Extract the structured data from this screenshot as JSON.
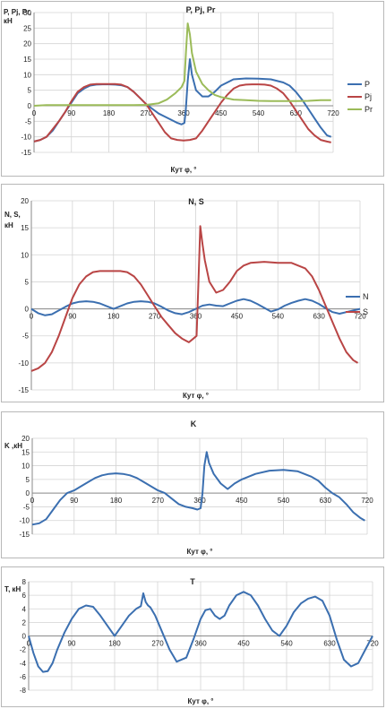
{
  "colors": {
    "blue": "#3b6fb0",
    "red": "#b94545",
    "green": "#9bbb59",
    "grid": "#d4d4d4",
    "axis": "#8a8a8a"
  },
  "chart_data": [
    {
      "type": "line",
      "title": "P, Pj, Pr",
      "ylabel": "P, Pj, Pr, кН",
      "xlabel": "Кут φ, °",
      "xlim": [
        0,
        720
      ],
      "ylim": [
        -15,
        30
      ],
      "ytick_step": 5,
      "xticks": [
        0,
        90,
        180,
        270,
        360,
        450,
        540,
        630,
        720
      ],
      "yticks": [
        -15,
        -10,
        -5,
        0,
        5,
        10,
        15,
        20,
        25,
        30
      ],
      "legend_position": "right",
      "series": [
        {
          "name": "P",
          "color": "#3b6fb0",
          "x": [
            0,
            15,
            30,
            45,
            60,
            75,
            90,
            105,
            120,
            135,
            150,
            165,
            180,
            195,
            210,
            225,
            240,
            255,
            270,
            285,
            300,
            315,
            330,
            345,
            355,
            362,
            365,
            370,
            375,
            380,
            390,
            405,
            420,
            435,
            450,
            480,
            510,
            540,
            570,
            600,
            615,
            630,
            645,
            660,
            675,
            690,
            705,
            715
          ],
          "y": [
            -11.5,
            -11,
            -10,
            -8,
            -5,
            -2,
            1,
            4,
            5.5,
            6.5,
            6.8,
            6.9,
            6.9,
            6.8,
            6.6,
            6,
            4.5,
            2.5,
            0.5,
            -1,
            -2.5,
            -3.5,
            -4.5,
            -5.5,
            -6,
            -5.5,
            -2,
            8,
            15,
            10,
            5,
            3,
            3,
            4.5,
            6.5,
            8.5,
            8.8,
            8.7,
            8.5,
            7.5,
            6.5,
            4.5,
            2,
            -1,
            -4,
            -7,
            -9.5,
            -10
          ]
        },
        {
          "name": "Pj",
          "color": "#b94545",
          "x": [
            0,
            15,
            30,
            45,
            60,
            75,
            90,
            105,
            120,
            135,
            150,
            165,
            180,
            195,
            210,
            225,
            240,
            255,
            270,
            285,
            300,
            315,
            330,
            345,
            360,
            375,
            390,
            405,
            420,
            435,
            450,
            465,
            480,
            495,
            510,
            525,
            540,
            555,
            570,
            585,
            600,
            615,
            630,
            645,
            660,
            675,
            690,
            705,
            715
          ],
          "y": [
            -11.5,
            -11,
            -10,
            -7.5,
            -5,
            -2,
            1.5,
            4.5,
            6,
            6.8,
            7,
            7,
            7,
            7,
            6.8,
            6,
            4.5,
            2.5,
            0.5,
            -2.5,
            -5.5,
            -8.5,
            -10.5,
            -11,
            -11.2,
            -11,
            -10.5,
            -8,
            -5,
            -2,
            1,
            3.5,
            5.5,
            6.5,
            6.8,
            6.9,
            6.9,
            6.8,
            6.5,
            5.5,
            4,
            1.5,
            -1.5,
            -4.5,
            -7.5,
            -9.5,
            -11,
            -11.5,
            -11.8
          ]
        },
        {
          "name": "Pr",
          "color": "#9bbb59",
          "x": [
            0,
            30,
            60,
            90,
            120,
            150,
            180,
            210,
            240,
            270,
            300,
            320,
            340,
            355,
            362,
            366,
            370,
            375,
            380,
            390,
            405,
            420,
            435,
            450,
            480,
            510,
            540,
            570,
            600,
            630,
            660,
            690,
            715
          ],
          "y": [
            0,
            0.2,
            0.2,
            0.2,
            0.2,
            0.2,
            0.2,
            0.2,
            0.2,
            0.3,
            0.8,
            2,
            4,
            6,
            8,
            18,
            26.5,
            23,
            17,
            11,
            7,
            5,
            3.5,
            2.8,
            2,
            1.8,
            1.6,
            1.5,
            1.5,
            1.5,
            1.6,
            1.8,
            1.8
          ]
        }
      ]
    },
    {
      "type": "line",
      "title": "N, S",
      "ylabel": "N, S, кН",
      "xlabel": "Кут φ, °",
      "xlim": [
        0,
        720
      ],
      "ylim": [
        -15,
        20
      ],
      "ytick_step": 5,
      "xticks": [
        0,
        90,
        180,
        270,
        360,
        450,
        540,
        630,
        720
      ],
      "yticks": [
        -15,
        -10,
        -5,
        0,
        5,
        10,
        15,
        20
      ],
      "legend_position": "right",
      "series": [
        {
          "name": "N",
          "color": "#3b6fb0",
          "x": [
            0,
            15,
            30,
            45,
            60,
            75,
            90,
            105,
            120,
            135,
            150,
            165,
            180,
            195,
            210,
            225,
            240,
            255,
            270,
            285,
            300,
            315,
            330,
            345,
            360,
            375,
            390,
            405,
            420,
            435,
            450,
            465,
            480,
            495,
            510,
            525,
            540,
            555,
            570,
            585,
            600,
            615,
            630,
            645,
            660,
            675,
            690,
            705,
            720
          ],
          "y": [
            0,
            -0.8,
            -1.2,
            -1,
            -0.3,
            0.4,
            1,
            1.3,
            1.4,
            1.3,
            1,
            0.5,
            0,
            0.5,
            1,
            1.3,
            1.4,
            1.3,
            1,
            0.4,
            -0.3,
            -0.8,
            -1,
            -0.6,
            0,
            0.6,
            0.8,
            0.6,
            0.5,
            1,
            1.5,
            1.8,
            1.5,
            0.9,
            0.2,
            -0.5,
            -0.1,
            0.6,
            1.1,
            1.5,
            1.8,
            1.5,
            0.9,
            0.1,
            -0.6,
            -0.9,
            -0.6,
            -0.3,
            0
          ]
        },
        {
          "name": "S",
          "color": "#b94545",
          "x": [
            0,
            15,
            30,
            45,
            60,
            75,
            90,
            105,
            120,
            135,
            150,
            165,
            180,
            195,
            210,
            225,
            240,
            255,
            270,
            285,
            300,
            315,
            330,
            345,
            355,
            362,
            366,
            370,
            375,
            380,
            390,
            405,
            420,
            435,
            450,
            465,
            480,
            510,
            540,
            570,
            600,
            615,
            630,
            645,
            660,
            675,
            690,
            705,
            715
          ],
          "y": [
            -11.5,
            -11,
            -10,
            -8,
            -5,
            -1.5,
            2,
            4.5,
            6,
            6.8,
            7,
            7,
            7,
            7,
            6.8,
            6,
            4.5,
            2.5,
            0.5,
            -1.5,
            -3,
            -4.5,
            -5.5,
            -6.2,
            -5.5,
            -5,
            5,
            15.3,
            12,
            9,
            5,
            3,
            3.5,
            5,
            7,
            8,
            8.5,
            8.7,
            8.5,
            8.5,
            7.5,
            6,
            3.5,
            0.5,
            -2.5,
            -5.5,
            -8,
            -9.5,
            -10
          ]
        }
      ]
    },
    {
      "type": "line",
      "title": "K",
      "ylabel": "K ,кН",
      "xlabel": "Кут φ, °",
      "xlim": [
        0,
        720
      ],
      "ylim": [
        -15,
        20
      ],
      "ytick_step": 5,
      "xticks": [
        0,
        90,
        180,
        270,
        360,
        450,
        540,
        630,
        720
      ],
      "yticks": [
        -15,
        -10,
        -5,
        0,
        5,
        10,
        15,
        20
      ],
      "legend_position": "none",
      "series": [
        {
          "name": "",
          "color": "#3b6fb0",
          "x": [
            0,
            15,
            30,
            45,
            60,
            75,
            90,
            105,
            120,
            135,
            150,
            165,
            180,
            195,
            210,
            225,
            240,
            255,
            270,
            285,
            300,
            315,
            330,
            345,
            355,
            362,
            366,
            370,
            375,
            380,
            390,
            405,
            420,
            435,
            450,
            480,
            510,
            540,
            570,
            600,
            615,
            630,
            645,
            660,
            675,
            690,
            705,
            715
          ],
          "y": [
            -11.5,
            -11,
            -9.5,
            -6,
            -2.5,
            0,
            1,
            2.5,
            4,
            5.5,
            6.5,
            7,
            7.2,
            7,
            6.5,
            5.5,
            4,
            2.5,
            1,
            0,
            -2,
            -4,
            -5,
            -5.5,
            -6,
            -5.5,
            0,
            10,
            15,
            11,
            7,
            3.5,
            1.5,
            3.5,
            5,
            7,
            8.2,
            8.5,
            8,
            6,
            4.5,
            2,
            0,
            -1.5,
            -4,
            -7,
            -9,
            -10
          ]
        }
      ]
    },
    {
      "type": "line",
      "title": "T",
      "ylabel": "Т, кН",
      "xlabel": "Кут φ, °",
      "xlim": [
        0,
        720
      ],
      "ylim": [
        -8,
        8
      ],
      "ytick_step": 2,
      "xticks": [
        0,
        90,
        180,
        270,
        360,
        450,
        540,
        630,
        720
      ],
      "yticks": [
        -8,
        -6,
        -4,
        -2,
        0,
        2,
        4,
        6,
        8
      ],
      "legend_position": "none",
      "series": [
        {
          "name": "",
          "color": "#3b6fb0",
          "x": [
            0,
            10,
            20,
            30,
            40,
            50,
            60,
            75,
            90,
            105,
            120,
            135,
            150,
            165,
            180,
            195,
            210,
            225,
            235,
            240,
            245,
            250,
            255,
            265,
            280,
            295,
            310,
            330,
            345,
            360,
            370,
            380,
            390,
            400,
            410,
            420,
            435,
            450,
            465,
            480,
            495,
            510,
            525,
            540,
            555,
            570,
            585,
            600,
            615,
            630,
            645,
            660,
            675,
            690,
            705,
            720
          ],
          "y": [
            0,
            -2.5,
            -4.5,
            -5.3,
            -5.2,
            -4,
            -2,
            0.5,
            2.5,
            4,
            4.5,
            4.3,
            3,
            1.5,
            0,
            1.5,
            3,
            4,
            4.4,
            6.3,
            5,
            4.5,
            4.2,
            3,
            0.5,
            -2,
            -3.8,
            -3.2,
            -0.5,
            2.5,
            3.8,
            4,
            3,
            2.5,
            3,
            4.5,
            6,
            6.5,
            6,
            4.5,
            2.5,
            0.8,
            0,
            1.5,
            3.5,
            4.8,
            5.5,
            5.8,
            5.2,
            3,
            -0.5,
            -3.5,
            -4.5,
            -4,
            -2,
            0
          ]
        }
      ]
    }
  ]
}
